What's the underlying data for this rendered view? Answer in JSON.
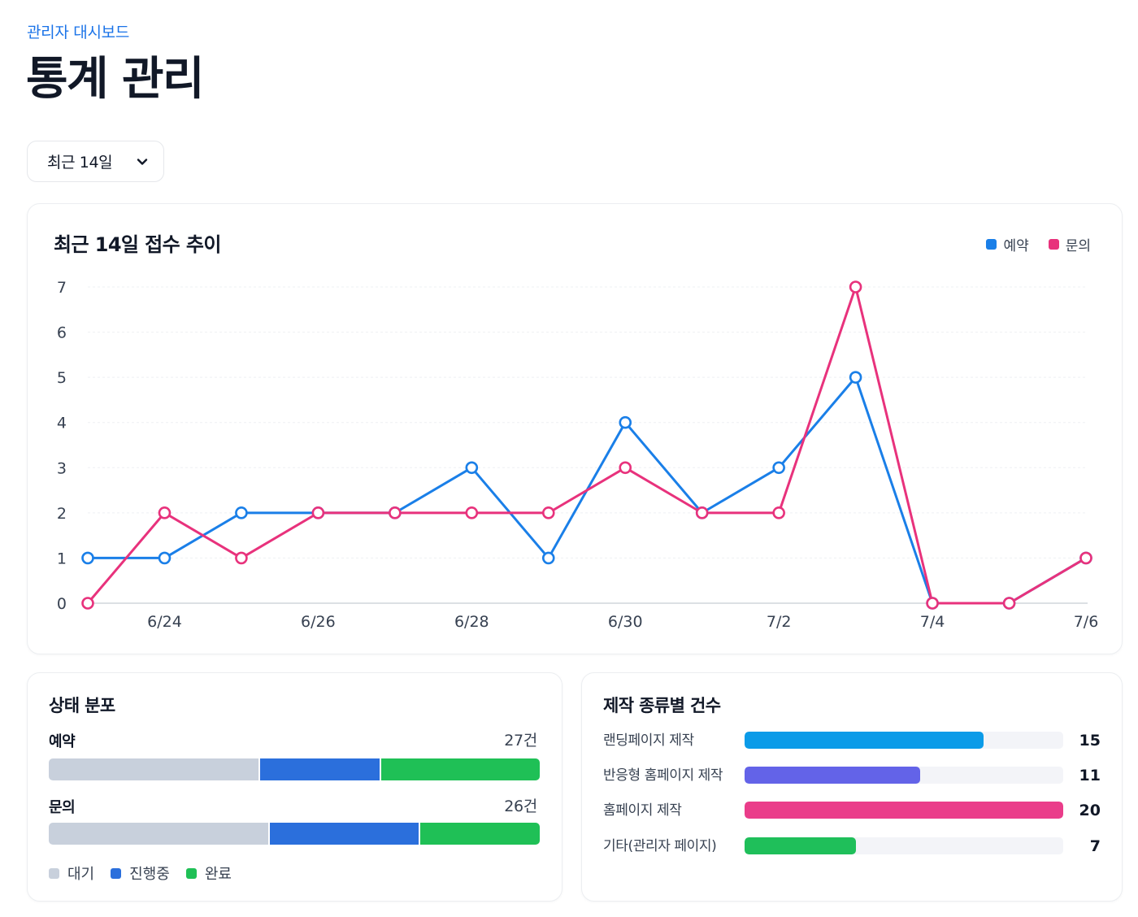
{
  "breadcrumb": "관리자 대시보드",
  "page_title": "통계 관리",
  "period_select": {
    "value": "최근 14일",
    "icon": "chevron-down-icon"
  },
  "trend": {
    "title": "최근 14일 접수 추이",
    "legend": [
      {
        "label": "예약",
        "color": "#1a7fe8"
      },
      {
        "label": "문의",
        "color": "#e8327c"
      }
    ]
  },
  "chart_data": {
    "type": "line",
    "title": "최근 14일 접수 추이",
    "x": [
      "6/23",
      "6/24",
      "6/25",
      "6/26",
      "6/27",
      "6/28",
      "6/29",
      "6/30",
      "7/1",
      "7/2",
      "7/3",
      "7/4",
      "7/5",
      "7/6"
    ],
    "x_tick_labels": [
      "6/24",
      "6/26",
      "6/28",
      "6/30",
      "7/2",
      "7/4",
      "7/6"
    ],
    "ylim": [
      0,
      7
    ],
    "y_ticks": [
      0,
      1,
      2,
      3,
      4,
      5,
      6,
      7
    ],
    "grid": true,
    "legend_position": "top-right",
    "series": [
      {
        "name": "예약",
        "color": "#1a7fe8",
        "values": [
          1,
          1,
          2,
          2,
          2,
          3,
          1,
          4,
          2,
          3,
          5,
          0,
          0,
          1
        ]
      },
      {
        "name": "문의",
        "color": "#e8327c",
        "values": [
          0,
          2,
          1,
          2,
          2,
          2,
          2,
          3,
          2,
          2,
          7,
          0,
          0,
          1
        ]
      }
    ]
  },
  "status": {
    "title": "상태 분포",
    "rows": [
      {
        "label": "예약",
        "count": "27건",
        "segments": [
          0.43,
          0.245,
          0.325
        ]
      },
      {
        "label": "문의",
        "count": "26건",
        "segments": [
          0.45,
          0.305,
          0.245
        ]
      }
    ],
    "legend": [
      {
        "label": "대기",
        "color": "#c8d0dc"
      },
      {
        "label": "진행중",
        "color": "#2b6fdc"
      },
      {
        "label": "완료",
        "color": "#1fc056"
      }
    ]
  },
  "types": {
    "title": "제작 종류별 건수",
    "max": 20,
    "items": [
      {
        "label": "랜딩페이지 제작",
        "value": "15",
        "color": "#0b9be8"
      },
      {
        "label": "반응형 홈페이지 제작",
        "value": "11",
        "color": "#6363e8"
      },
      {
        "label": "홈페이지 제작",
        "value": "20",
        "color": "#ea3d8a"
      },
      {
        "label": "기타(관리자 페이지)",
        "value": "7",
        "color": "#1fbf5a"
      }
    ]
  }
}
